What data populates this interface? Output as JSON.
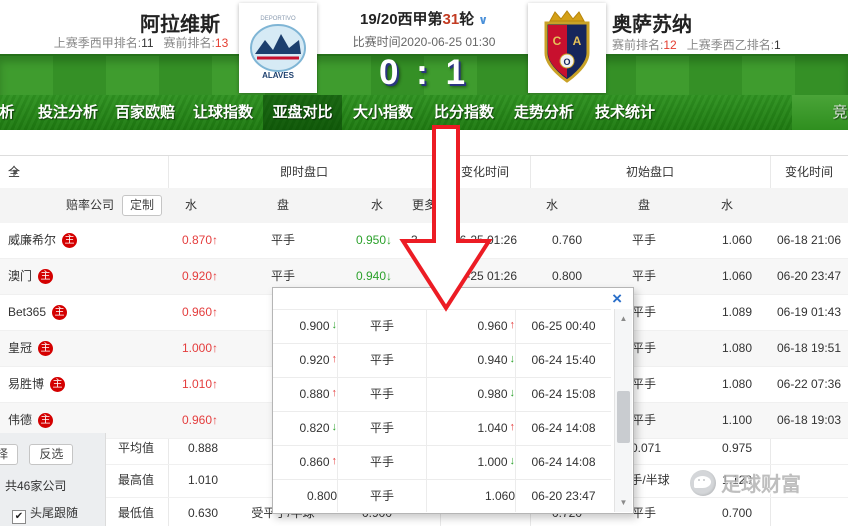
{
  "colors": {
    "rise_red": "#e43d3d",
    "fall_green": "#2ba12b",
    "badge_red": "#d40000",
    "annotation_arrow_red": "#ec1c24",
    "link_blue": "#2a6fc9",
    "nav_green": "#2f8f1f"
  },
  "match": {
    "home": {
      "name": "阿拉维斯",
      "rank1_label": "上赛季西甲排名:",
      "rank1_value": "11",
      "rank2_label": "赛前排名:",
      "rank2_value": "13"
    },
    "away": {
      "name": "奥萨苏纳",
      "rank1_label": "赛前排名:",
      "rank1_value": "12",
      "rank2_label": "上赛季西乙排名:",
      "rank2_value": "1"
    },
    "league_prefix": "19/20西甲第",
    "league_round": "31",
    "league_suffix": "轮",
    "caret": "∨",
    "time": "比赛时间2020-06-25 01:30",
    "score_home": "0",
    "score_sep": ":",
    "score_away": "1"
  },
  "nav": {
    "partial_left": "析",
    "partial_right": "竞",
    "active": "亚盘对比",
    "items": [
      "投注分析",
      "百家欧赔",
      "让球指数",
      "亚盘对比",
      "大小指数",
      "比分指数",
      "走势分析",
      "技术统计"
    ]
  },
  "table": {
    "filter_all": "全部公司",
    "groups": {
      "live": "即时盘口",
      "change1": "变化时间",
      "initial": "初始盘口",
      "change2": "变化时间"
    },
    "sub": {
      "company": "赔率公司",
      "custom": "定制",
      "w": "水",
      "pan": "盘",
      "w2": "水",
      "more": "更多"
    },
    "badge": "主",
    "rows": [
      {
        "company": "威廉希尔",
        "badge": true,
        "lw1": "0.870",
        "lw1d": "up",
        "lpan": "平手",
        "lw2": "0.950",
        "lw2d": "down",
        "more": "3",
        "t1": "06-25 01:26",
        "iw1": "0.760",
        "ipan": "平手",
        "iw2": "1.060",
        "t2": "06-18 21:06"
      },
      {
        "company": "澳门",
        "badge": true,
        "lw1": "0.920",
        "lw1d": "up",
        "lpan": "平手",
        "lw2": "0.940",
        "lw2d": "down",
        "more": "",
        "t1": "06-25 01:26",
        "iw1": "0.800",
        "ipan": "平手",
        "iw2": "1.060",
        "t2": "06-20 23:47"
      },
      {
        "company": "Bet365",
        "badge": true,
        "lw1": "0.960",
        "lw1d": "up",
        "lpan": "",
        "lw2": "",
        "lw2d": "",
        "more": "",
        "t1": "",
        "iw1": "",
        "ipan": "平手",
        "iw2": "1.089",
        "t2": "06-19 01:43"
      },
      {
        "company": "皇冠",
        "badge": true,
        "lw1": "1.000",
        "lw1d": "up",
        "lpan": "",
        "lw2": "",
        "lw2d": "",
        "more": "",
        "t1": "",
        "iw1": "",
        "ipan": "平手",
        "iw2": "1.080",
        "t2": "06-18 19:51"
      },
      {
        "company": "易胜博",
        "badge": true,
        "lw1": "1.010",
        "lw1d": "up",
        "lpan": "",
        "lw2": "",
        "lw2d": "",
        "more": "",
        "t1": "",
        "iw1": "",
        "ipan": "平手",
        "iw2": "1.080",
        "t2": "06-22 07:36"
      },
      {
        "company": "伟德",
        "badge": true,
        "lw1": "0.960",
        "lw1d": "up",
        "lpan": "",
        "lw2": "",
        "lw2d": "",
        "more": "",
        "t1": "",
        "iw1": "",
        "ipan": "平手",
        "iw2": "1.100",
        "t2": "06-18 19:03"
      }
    ],
    "summary": [
      {
        "label": "平均值",
        "lw1": "0.888",
        "lpan": "",
        "lw2": "",
        "iw1": "",
        "ipan": "-0.071",
        "iw2": "0.975"
      },
      {
        "label": "最高值",
        "lw1": "1.010",
        "lpan": "",
        "lw2": "",
        "iw1": "",
        "ipan": "平手/半球",
        "iw2": "1.120"
      },
      {
        "label": "最低值",
        "lw1": "0.630",
        "lpan": "受平手/半球",
        "lw2": "0.900",
        "iw1": "0.720",
        "ipan": "平手",
        "iw2": "0.700"
      }
    ]
  },
  "sidebar": {
    "select_btn": "选择",
    "invert_btn": "反选",
    "count": "共46家公司",
    "follow": "头尾跟随"
  },
  "popup": {
    "close": "×",
    "rows": [
      {
        "w1": "0.900",
        "d1": "down",
        "pan": "平手",
        "w2": "0.960",
        "d2": "up",
        "time": "06-25 00:40"
      },
      {
        "w1": "0.920",
        "d1": "up",
        "pan": "平手",
        "w2": "0.940",
        "d2": "down",
        "time": "06-24 15:40"
      },
      {
        "w1": "0.880",
        "d1": "up",
        "pan": "平手",
        "w2": "0.980",
        "d2": "down",
        "time": "06-24 15:08"
      },
      {
        "w1": "0.820",
        "d1": "down",
        "pan": "平手",
        "w2": "1.040",
        "d2": "up",
        "time": "06-24 14:08"
      },
      {
        "w1": "0.860",
        "d1": "up",
        "pan": "平手",
        "w2": "1.000",
        "d2": "down",
        "time": "06-24 14:08"
      },
      {
        "w1": "0.800",
        "d1": "",
        "pan": "平手",
        "w2": "1.060",
        "d2": "",
        "time": "06-20 23:47"
      }
    ]
  },
  "watermark": "足球财富"
}
